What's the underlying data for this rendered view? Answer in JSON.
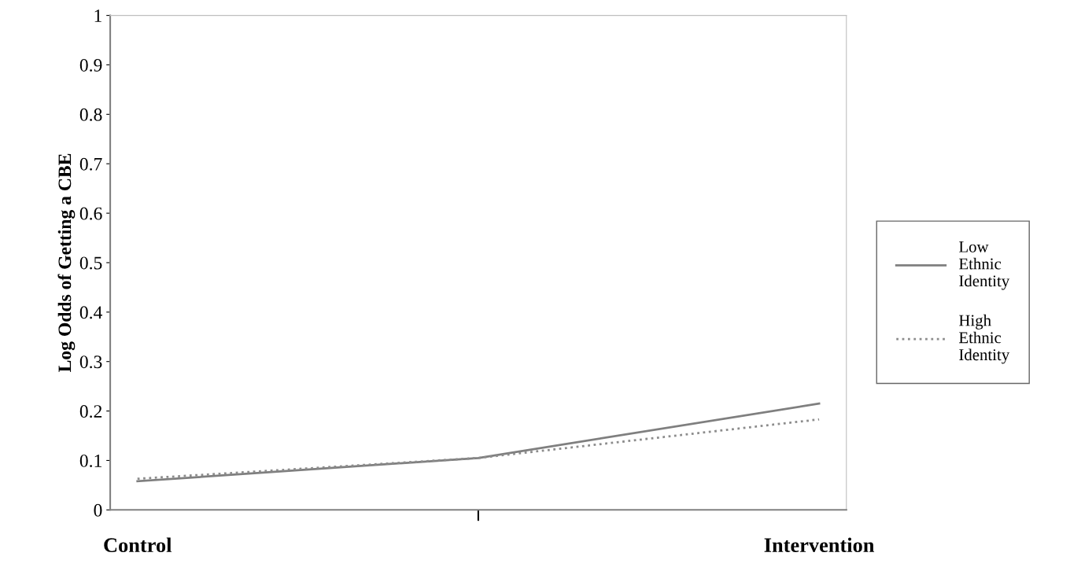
{
  "chart_data": {
    "type": "line",
    "ylabel": "Log Odds of Getting a CBE",
    "categories": [
      "Control",
      null,
      "Intervention"
    ],
    "series": [
      {
        "name": "Low Ethnic Identity",
        "color": "#7f7f7f",
        "line_style": "solid",
        "values": [
          0.058,
          0.105,
          0.215
        ]
      },
      {
        "name": "High Ethnic Identity",
        "color": "#8c8c8c",
        "line_style": "dotted",
        "values": [
          0.063,
          0.105,
          0.183
        ]
      }
    ],
    "ylim": [
      0,
      1
    ],
    "yticks": [
      0,
      0.1,
      0.2,
      0.3,
      0.4,
      0.5,
      0.6,
      0.7,
      0.8,
      0.9,
      1
    ],
    "grid": false,
    "legend": "right",
    "marker": "none"
  }
}
